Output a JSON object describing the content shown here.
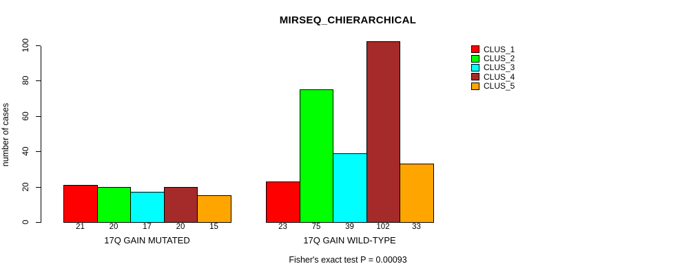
{
  "title": "MIRSEQ_CHIERARCHICAL",
  "caption": "Fisher's exact test P = 0.00093",
  "colors": {
    "background": "#ffffff",
    "axis": "#000000",
    "bar_border": "#000000"
  },
  "legend": {
    "position": "right",
    "items": [
      {
        "label": "CLUS_1",
        "color": "#ff0000"
      },
      {
        "label": "CLUS_2",
        "color": "#00ff00"
      },
      {
        "label": "CLUS_3",
        "color": "#00ffff"
      },
      {
        "label": "CLUS_4",
        "color": "#a52a2a"
      },
      {
        "label": "CLUS_5",
        "color": "#ffa500"
      }
    ]
  },
  "chart_data": {
    "type": "bar",
    "title": "MIRSEQ_CHIERARCHICAL",
    "xlabel": "",
    "ylabel": "number of cases",
    "ylim": [
      0,
      100
    ],
    "yticks": [
      0,
      20,
      40,
      60,
      80,
      100
    ],
    "grid": false,
    "legend_position": "right",
    "categories": [
      "17Q GAIN MUTATED",
      "17Q GAIN WILD-TYPE"
    ],
    "series": [
      {
        "name": "CLUS_1",
        "color": "#ff0000",
        "values": [
          21,
          23
        ]
      },
      {
        "name": "CLUS_2",
        "color": "#00ff00",
        "values": [
          20,
          75
        ]
      },
      {
        "name": "CLUS_3",
        "color": "#00ffff",
        "values": [
          17,
          39
        ]
      },
      {
        "name": "CLUS_4",
        "color": "#a52a2a",
        "values": [
          20,
          102
        ]
      },
      {
        "name": "CLUS_5",
        "color": "#ffa500",
        "values": [
          15,
          33
        ]
      }
    ],
    "annotation": "Fisher's exact test P = 0.00093"
  }
}
